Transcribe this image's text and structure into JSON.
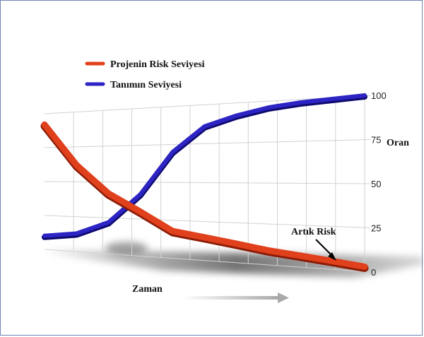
{
  "chart_data": {
    "type": "line",
    "title": "",
    "xlabel": "Zaman",
    "ylabel": "Oran",
    "ylim": [
      0,
      100
    ],
    "yticks": [
      0,
      25,
      50,
      75,
      100
    ],
    "grid": true,
    "legend_position": "top-left",
    "annotation": "Artık Risk",
    "series": [
      {
        "name": "Projenin Risk Seviyesi",
        "color": "#e0401c",
        "x": [
          0,
          1,
          2,
          3,
          4,
          5,
          6,
          7,
          8,
          9,
          10
        ],
        "values": [
          92,
          62,
          42,
          30,
          18,
          15,
          12,
          9,
          7,
          5,
          3
        ]
      },
      {
        "name": "Tanımın Seviyesi",
        "color": "#2d24c4",
        "x": [
          0,
          1,
          2,
          3,
          4,
          5,
          6,
          7,
          8,
          9,
          10
        ],
        "values": [
          10,
          13,
          22,
          42,
          70,
          86,
          92,
          96,
          98,
          99,
          100
        ]
      }
    ]
  }
}
